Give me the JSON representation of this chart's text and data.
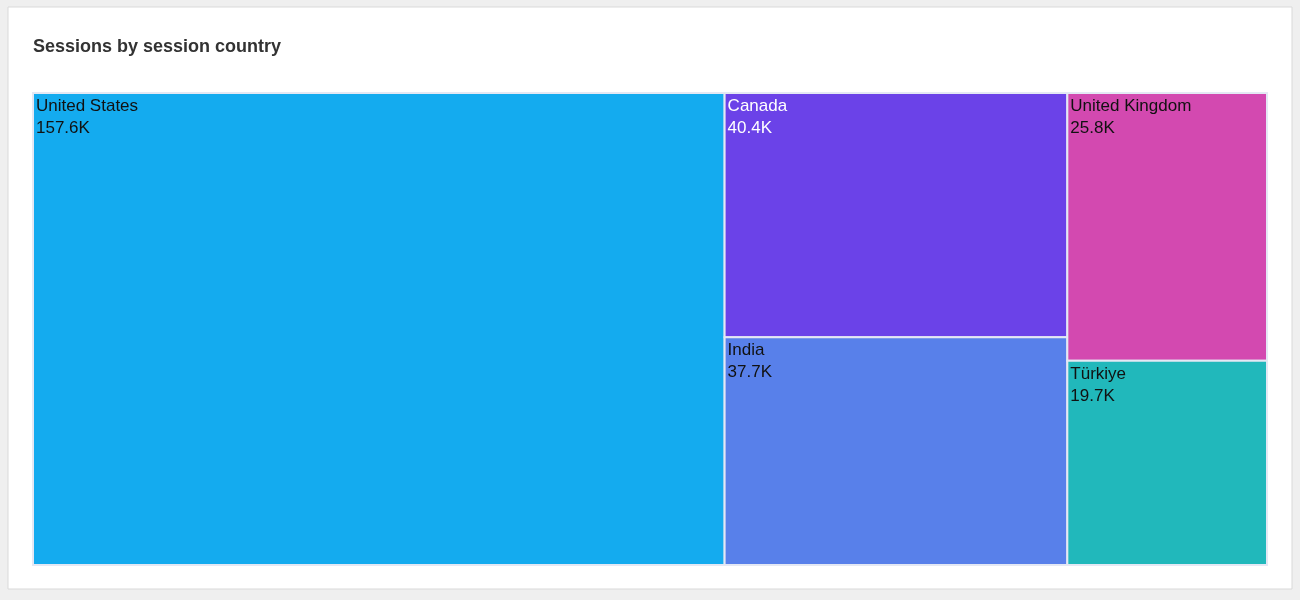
{
  "chart_data": {
    "type": "other",
    "title": "Sessions by session country",
    "categories": [
      "United States",
      "Canada",
      "India",
      "United Kingdom",
      "Türkiye"
    ],
    "values": [
      157.6,
      40.4,
      37.7,
      25.8,
      19.7
    ],
    "value_labels": [
      "157.6K",
      "40.4K",
      "37.7K",
      "25.8K",
      "19.7K"
    ],
    "colors": [
      "#14abef",
      "#6b42e8",
      "#5880ea",
      "#d349b0",
      "#21b8bb"
    ]
  }
}
